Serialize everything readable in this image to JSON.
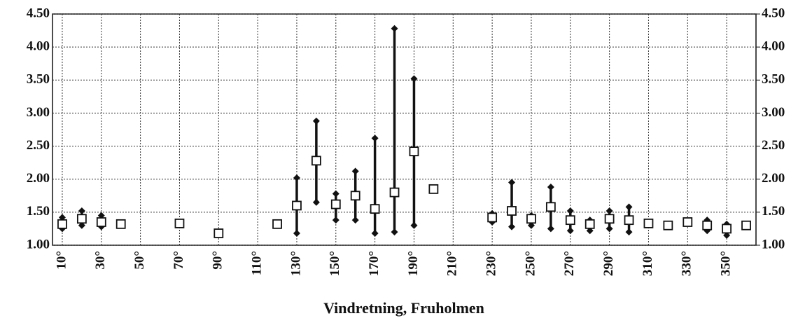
{
  "chart_data": {
    "type": "range",
    "x_label": "Vindretning, Fruholmen",
    "x": [
      10,
      20,
      30,
      40,
      70,
      90,
      120,
      130,
      140,
      150,
      160,
      170,
      180,
      190,
      200,
      230,
      240,
      250,
      260,
      270,
      280,
      290,
      300,
      310,
      320,
      330,
      340,
      350,
      360
    ],
    "values": [
      1.32,
      1.4,
      1.35,
      1.32,
      1.33,
      1.18,
      1.32,
      1.6,
      2.28,
      1.62,
      1.75,
      1.55,
      1.8,
      2.42,
      1.85,
      1.42,
      1.52,
      1.4,
      1.58,
      1.38,
      1.32,
      1.4,
      1.38,
      1.33,
      1.3,
      1.35,
      1.3,
      1.25,
      1.3
    ],
    "min": [
      1.25,
      1.3,
      1.28,
      null,
      null,
      null,
      null,
      1.18,
      1.65,
      1.38,
      1.38,
      1.18,
      1.2,
      1.3,
      null,
      1.35,
      1.28,
      1.3,
      1.25,
      1.22,
      1.22,
      1.25,
      1.2,
      null,
      null,
      null,
      1.22,
      1.15,
      null
    ],
    "max": [
      1.42,
      1.52,
      1.45,
      null,
      null,
      null,
      null,
      2.02,
      2.88,
      1.78,
      2.12,
      2.62,
      4.28,
      3.52,
      null,
      1.48,
      1.95,
      1.45,
      1.88,
      1.52,
      1.38,
      1.52,
      1.58,
      null,
      null,
      null,
      1.38,
      1.32,
      null
    ],
    "xlim": [
      5,
      365
    ],
    "xticks": [
      {
        "value": 10,
        "label": "10°"
      },
      {
        "value": 30,
        "label": "30°"
      },
      {
        "value": 50,
        "label": "50°"
      },
      {
        "value": 70,
        "label": "70°"
      },
      {
        "value": 90,
        "label": "90°"
      },
      {
        "value": 110,
        "label": "110°"
      },
      {
        "value": 130,
        "label": "130°"
      },
      {
        "value": 150,
        "label": "150°"
      },
      {
        "value": 170,
        "label": "170°"
      },
      {
        "value": 190,
        "label": "190°"
      },
      {
        "value": 210,
        "label": "210°"
      },
      {
        "value": 230,
        "label": "230°"
      },
      {
        "value": 250,
        "label": "250°"
      },
      {
        "value": 270,
        "label": "270°"
      },
      {
        "value": 290,
        "label": "290°"
      },
      {
        "value": 310,
        "label": "310°"
      },
      {
        "value": 330,
        "label": "330°"
      },
      {
        "value": 350,
        "label": "350°"
      }
    ],
    "ylim": [
      1,
      4.5
    ],
    "yticks": [
      {
        "value": 1,
        "label": "1.00"
      },
      {
        "value": 1.5,
        "label": "1.50"
      },
      {
        "value": 2,
        "label": "2.00"
      },
      {
        "value": 2.5,
        "label": "2.50"
      },
      {
        "value": 3,
        "label": "3.00"
      },
      {
        "value": 3.5,
        "label": "3.50"
      },
      {
        "value": 4,
        "label": "4.00"
      },
      {
        "value": 4.5,
        "label": "4.50"
      }
    ],
    "y2lim": [
      1,
      4.5
    ],
    "y2ticks": [
      {
        "value": 1,
        "label": "1.00"
      },
      {
        "value": 1.5,
        "label": "1.50"
      },
      {
        "value": 2,
        "label": "2.00"
      },
      {
        "value": 2.5,
        "label": "2.50"
      },
      {
        "value": 3,
        "label": "3.00"
      },
      {
        "value": 3.5,
        "label": "3.50"
      },
      {
        "value": 4,
        "label": "4.00"
      },
      {
        "value": 4.5,
        "label": "4.50"
      }
    ],
    "grid": true,
    "color": "#111111"
  }
}
